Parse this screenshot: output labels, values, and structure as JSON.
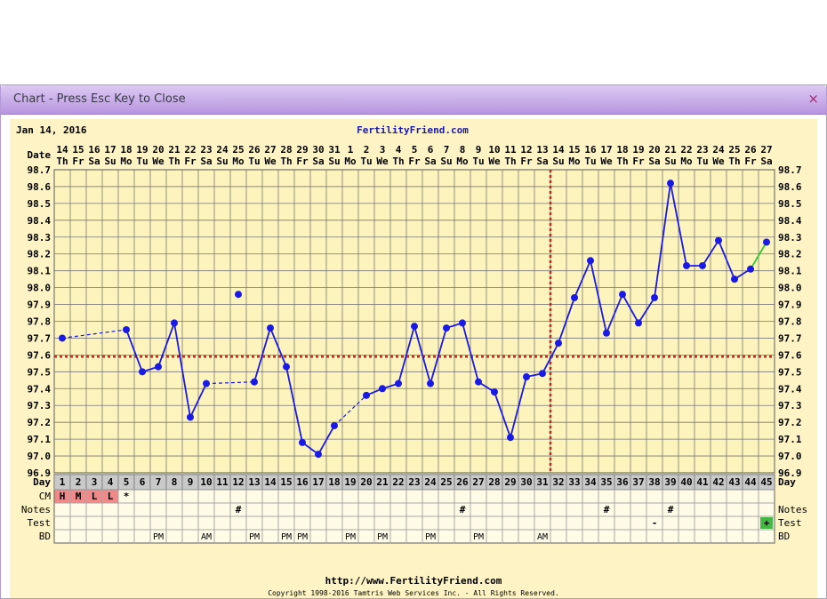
{
  "window": {
    "title": "Chart - Press Esc Key to Close",
    "close_glyph": "×",
    "accent": "#b895e0"
  },
  "chart_data": {
    "type": "line",
    "start_date": "Jan 14, 2016",
    "site": "FertilityFriend.com",
    "footer_url": "http://www.FertilityFriend.com",
    "copyright": "Copyright 1998-2016 Tamtris Web Services Inc. - All Rights Reserved.",
    "date_row_label": "Date",
    "day_row_label": "Day",
    "dates": [
      "14",
      "15",
      "16",
      "17",
      "18",
      "19",
      "20",
      "21",
      "22",
      "23",
      "24",
      "25",
      "26",
      "27",
      "28",
      "29",
      "30",
      "31",
      "1",
      "2",
      "3",
      "4",
      "5",
      "6",
      "7",
      "8",
      "9",
      "10",
      "11",
      "12",
      "13",
      "14",
      "15",
      "16",
      "17",
      "18",
      "19",
      "20",
      "21",
      "22",
      "23",
      "24",
      "25",
      "26",
      "27"
    ],
    "weekdays": [
      "Th",
      "Fr",
      "Sa",
      "Su",
      "Mo",
      "Tu",
      "We",
      "Th",
      "Fr",
      "Sa",
      "Su",
      "Mo",
      "Tu",
      "We",
      "Th",
      "Fr",
      "Sa",
      "Su",
      "Mo",
      "Tu",
      "We",
      "Th",
      "Fr",
      "Sa",
      "Su",
      "Mo",
      "Tu",
      "We",
      "Th",
      "Fr",
      "Sa",
      "Su",
      "Mo",
      "Tu",
      "We",
      "Th",
      "Fr",
      "Sa",
      "Su",
      "Mo",
      "Tu",
      "We",
      "Th",
      "Fr",
      "Sa"
    ],
    "days": [
      1,
      2,
      3,
      4,
      5,
      6,
      7,
      8,
      9,
      10,
      11,
      12,
      13,
      14,
      15,
      16,
      17,
      18,
      19,
      20,
      21,
      22,
      23,
      24,
      25,
      26,
      27,
      28,
      29,
      30,
      31,
      32,
      33,
      34,
      35,
      36,
      37,
      38,
      39,
      40,
      41,
      42,
      43,
      44,
      45
    ],
    "temps": [
      97.7,
      null,
      null,
      null,
      97.75,
      97.5,
      97.53,
      97.79,
      97.23,
      97.43,
      null,
      97.96,
      97.44,
      97.76,
      97.53,
      97.08,
      97.01,
      97.18,
      null,
      97.36,
      97.4,
      97.43,
      97.77,
      97.43,
      97.76,
      97.79,
      97.44,
      97.38,
      97.11,
      97.47,
      97.49,
      97.67,
      97.94,
      98.16,
      97.73,
      97.96,
      97.79,
      97.94,
      98.62,
      98.13,
      98.13,
      98.28,
      98.05,
      98.11,
      98.27
    ],
    "discarded_days": [
      12
    ],
    "last_point_color": "#2ec92e",
    "ylim": [
      96.9,
      98.7
    ],
    "y_ticks": [
      "96.9",
      "97.0",
      "97.1",
      "97.2",
      "97.3",
      "97.4",
      "97.5",
      "97.6",
      "97.7",
      "97.8",
      "97.9",
      "98.0",
      "98.1",
      "98.2",
      "98.3",
      "98.4",
      "98.5",
      "98.6",
      "98.7"
    ],
    "coverline": 97.59,
    "ovulation_day": 31,
    "line_color": "#1a1ae6",
    "reference_color": "#d61a1a",
    "grid": true,
    "rows": [
      {
        "label": "CM",
        "right_label": "",
        "cells": {
          "1": "H",
          "2": "M",
          "3": "L",
          "4": "L",
          "5": "*"
        }
      },
      {
        "label": "Notes",
        "right_label": "Notes",
        "cells": {
          "12": "#",
          "26": "#",
          "35": "#",
          "39": "#"
        }
      },
      {
        "label": "Test",
        "right_label": "Test",
        "cells": {
          "38": "-",
          "45": "+"
        }
      },
      {
        "label": "BD",
        "right_label": "BD",
        "cells": {
          "7": "PM",
          "10": "AM",
          "13": "PM",
          "15": "PM",
          "16": "PM",
          "19": "PM",
          "21": "PM",
          "24": "PM",
          "27": "PM",
          "31": "AM"
        }
      }
    ],
    "cm_highlight_color": "#f08a8a",
    "test_positive_color": "#44b844"
  }
}
